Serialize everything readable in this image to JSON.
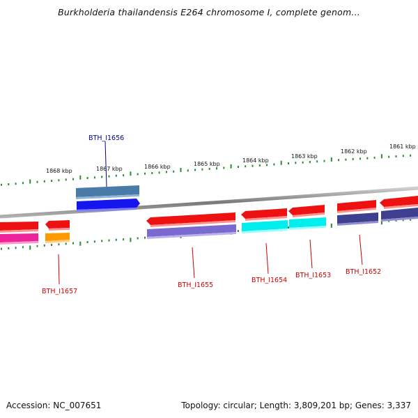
{
  "title": "Burkholderia thailandensis E264 chromosome I, complete genom...",
  "footer": {
    "accession": "Accession: NC_007651",
    "summary": "Topology: circular; Length: 3,809,201 bp; Genes: 3,337"
  },
  "scale": {
    "labels": [
      "1868 kbp",
      "1867 kbp",
      "1866 kbp",
      "1865 kbp",
      "1864 kbp",
      "1863 kbp",
      "1862 kbp",
      "1861 kbp"
    ]
  },
  "genes": {
    "labels": [
      "BTH_I1656",
      "BTH_I1657",
      "BTH_I1655",
      "BTH_I1654",
      "BTH_I1653",
      "BTH_I1652"
    ]
  },
  "colors": {
    "backbone": "#8c8c8c",
    "tick": "#2e8b2e",
    "label_selected": "#00008b",
    "label_normal": "#cc0000",
    "cds_red": "#ee1111",
    "gene_blue": "#1515ee",
    "gene_steel": "#4a7aa8",
    "gene_magenta": "#ee2299",
    "gene_orange": "#ff9900",
    "gene_purple": "#7a6ad0",
    "gene_cyan": "#00eeee",
    "gene_navy": "#3f3f8f"
  }
}
